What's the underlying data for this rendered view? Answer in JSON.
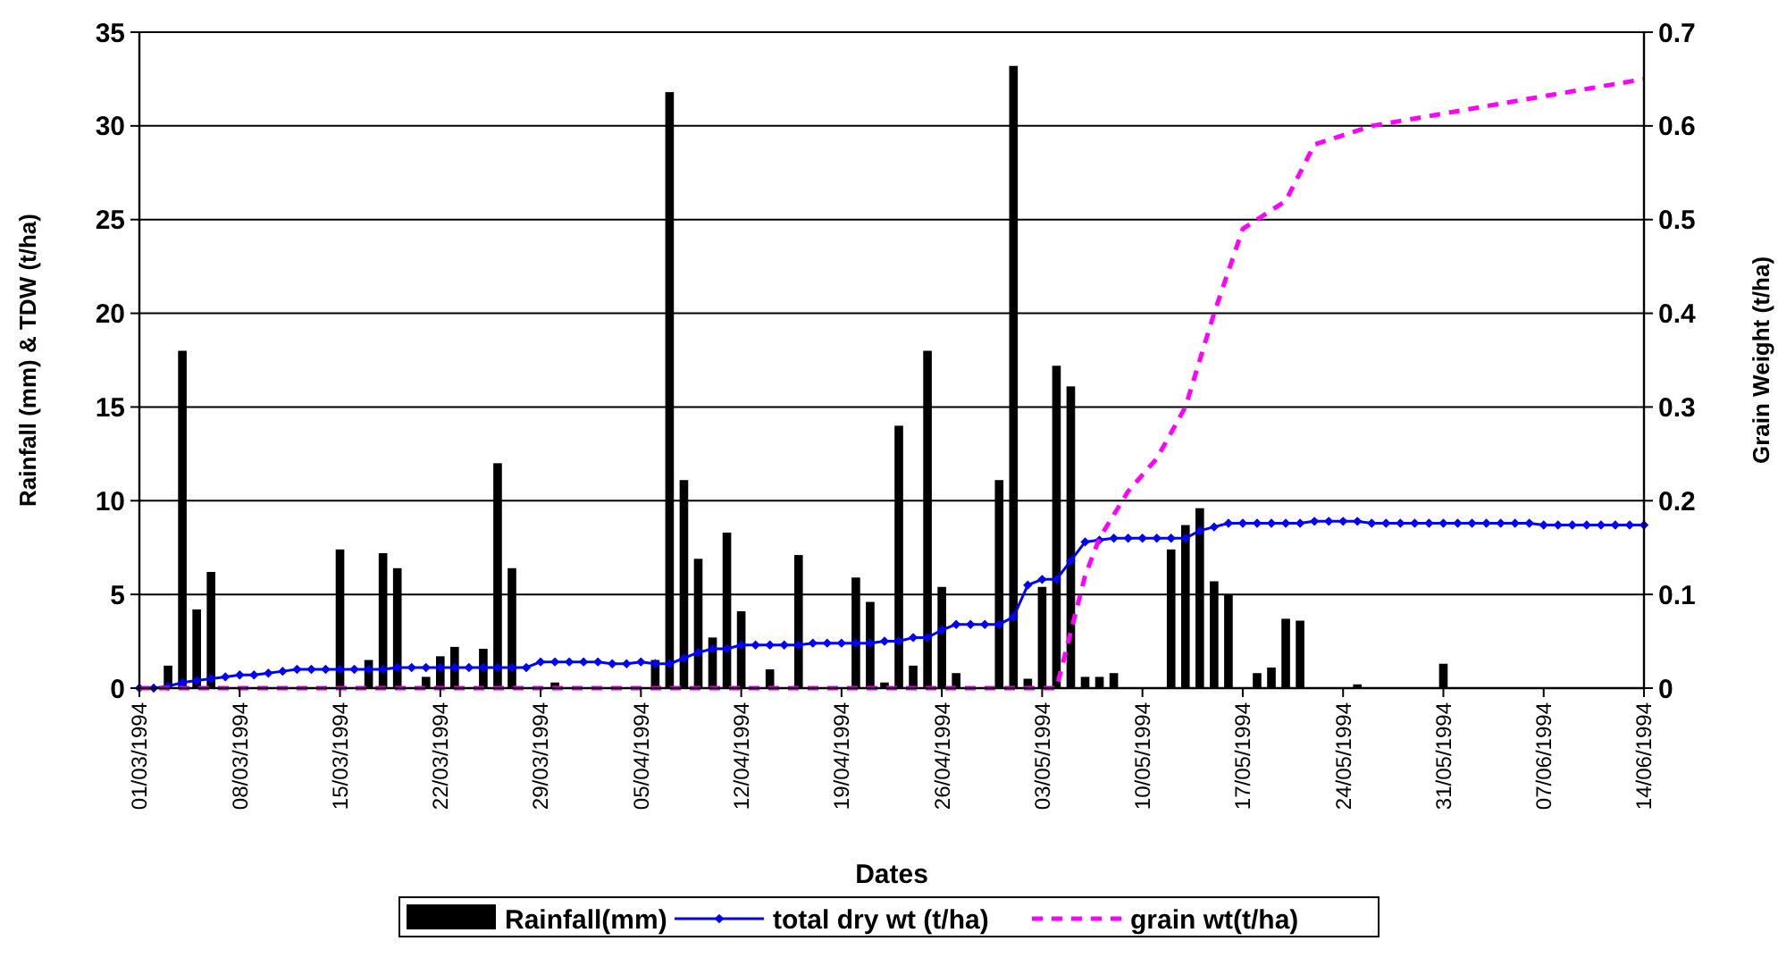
{
  "chart_data": {
    "type": "bar",
    "xlabel": "Dates",
    "ylabel": "Rainfall (mm) & TDW (t/ha)",
    "y2label": "Grain Weight (t/ha)",
    "xlim": [
      "1994-03-01",
      "1994-06-14"
    ],
    "xticks": [
      {
        "value": "1994-03-01",
        "label": "01/03/1994"
      },
      {
        "value": "1994-03-08",
        "label": "08/03/1994"
      },
      {
        "value": "1994-03-15",
        "label": "15/03/1994"
      },
      {
        "value": "1994-03-22",
        "label": "22/03/1994"
      },
      {
        "value": "1994-03-29",
        "label": "29/03/1994"
      },
      {
        "value": "1994-04-05",
        "label": "05/04/1994"
      },
      {
        "value": "1994-04-12",
        "label": "12/04/1994"
      },
      {
        "value": "1994-04-19",
        "label": "19/04/1994"
      },
      {
        "value": "1994-04-26",
        "label": "26/04/1994"
      },
      {
        "value": "1994-05-03",
        "label": "03/05/1994"
      },
      {
        "value": "1994-05-10",
        "label": "10/05/1994"
      },
      {
        "value": "1994-05-17",
        "label": "17/05/1994"
      },
      {
        "value": "1994-05-24",
        "label": "24/05/1994"
      },
      {
        "value": "1994-05-31",
        "label": "31/05/1994"
      },
      {
        "value": "1994-06-07",
        "label": "07/06/1994"
      },
      {
        "value": "1994-06-14",
        "label": "14/06/1994"
      }
    ],
    "ylim": [
      0,
      35
    ],
    "yticks": [
      0,
      5,
      10,
      15,
      20,
      25,
      30,
      35
    ],
    "y2lim": [
      0,
      0.7
    ],
    "y2ticks": [
      0,
      0.1,
      0.2,
      0.3,
      0.4,
      0.5,
      0.6,
      0.7
    ],
    "grid": "y",
    "legend": "bottom",
    "series": [
      {
        "name": "Rainfall(mm)",
        "color": "#000000",
        "x": [
          "1994-03-03",
          "1994-03-04",
          "1994-03-05",
          "1994-03-06",
          "1994-03-15",
          "1994-03-17",
          "1994-03-18",
          "1994-03-19",
          "1994-03-21",
          "1994-03-22",
          "1994-03-23",
          "1994-03-25",
          "1994-03-26",
          "1994-03-27",
          "1994-03-30",
          "1994-04-06",
          "1994-04-07",
          "1994-04-08",
          "1994-04-09",
          "1994-04-10",
          "1994-04-11",
          "1994-04-12",
          "1994-04-14",
          "1994-04-16",
          "1994-04-20",
          "1994-04-21",
          "1994-04-22",
          "1994-04-23",
          "1994-04-24",
          "1994-04-25",
          "1994-04-26",
          "1994-04-27",
          "1994-04-30",
          "1994-05-01",
          "1994-05-02",
          "1994-05-03",
          "1994-05-04",
          "1994-05-05",
          "1994-05-06",
          "1994-05-07",
          "1994-05-08",
          "1994-05-12",
          "1994-05-13",
          "1994-05-14",
          "1994-05-15",
          "1994-05-16",
          "1994-05-18",
          "1994-05-19",
          "1994-05-20",
          "1994-05-21",
          "1994-05-25",
          "1994-05-31"
        ],
        "values": [
          1.2,
          18,
          4.2,
          6.2,
          7.4,
          1.5,
          7.2,
          6.4,
          0.6,
          1.7,
          2.2,
          2.1,
          12,
          6.4,
          0.3,
          1.5,
          31.8,
          11.1,
          6.9,
          2.7,
          8.3,
          4.1,
          1.0,
          7.1,
          5.9,
          4.6,
          0.3,
          14,
          1.2,
          18,
          5.4,
          0.8,
          11.1,
          33.2,
          0.5,
          5.4,
          17.2,
          16.1,
          0.6,
          0.6,
          0.8,
          7.4,
          8.7,
          9.6,
          5.7,
          5.0,
          0.8,
          1.1,
          3.7,
          3.6,
          0.2,
          1.3
        ]
      },
      {
        "name": "total dry wt (t/ha)",
        "type": "line",
        "color": "#0000ff",
        "marker": "diamond",
        "line_style": "solid",
        "x": [
          "1994-03-01",
          "1994-03-02",
          "1994-03-03",
          "1994-03-04",
          "1994-03-05",
          "1994-03-06",
          "1994-03-07",
          "1994-03-08",
          "1994-03-09",
          "1994-03-10",
          "1994-03-11",
          "1994-03-12",
          "1994-03-13",
          "1994-03-14",
          "1994-03-15",
          "1994-03-16",
          "1994-03-17",
          "1994-03-18",
          "1994-03-19",
          "1994-03-20",
          "1994-03-21",
          "1994-03-22",
          "1994-03-23",
          "1994-03-24",
          "1994-03-25",
          "1994-03-26",
          "1994-03-27",
          "1994-03-28",
          "1994-03-29",
          "1994-03-30",
          "1994-03-31",
          "1994-04-01",
          "1994-04-02",
          "1994-04-03",
          "1994-04-04",
          "1994-04-05",
          "1994-04-06",
          "1994-04-07",
          "1994-04-08",
          "1994-04-09",
          "1994-04-10",
          "1994-04-11",
          "1994-04-12",
          "1994-04-13",
          "1994-04-14",
          "1994-04-15",
          "1994-04-16",
          "1994-04-17",
          "1994-04-18",
          "1994-04-19",
          "1994-04-20",
          "1994-04-21",
          "1994-04-22",
          "1994-04-23",
          "1994-04-24",
          "1994-04-25",
          "1994-04-26",
          "1994-04-27",
          "1994-04-28",
          "1994-04-29",
          "1994-04-30",
          "1994-05-01",
          "1994-05-02",
          "1994-05-03",
          "1994-05-04",
          "1994-05-05",
          "1994-05-06",
          "1994-05-07",
          "1994-05-08",
          "1994-05-09",
          "1994-05-10",
          "1994-05-11",
          "1994-05-12",
          "1994-05-13",
          "1994-05-14",
          "1994-05-15",
          "1994-05-16",
          "1994-05-17",
          "1994-05-18",
          "1994-05-19",
          "1994-05-20",
          "1994-05-21",
          "1994-05-22",
          "1994-05-23",
          "1994-05-24",
          "1994-05-25",
          "1994-05-26",
          "1994-05-27",
          "1994-05-28",
          "1994-05-29",
          "1994-05-30",
          "1994-05-31",
          "1994-06-01",
          "1994-06-02",
          "1994-06-03",
          "1994-06-04",
          "1994-06-05",
          "1994-06-06",
          "1994-06-07",
          "1994-06-08",
          "1994-06-09",
          "1994-06-10",
          "1994-06-11",
          "1994-06-12",
          "1994-06-13",
          "1994-06-14"
        ],
        "values": [
          0,
          0,
          0.1,
          0.3,
          0.4,
          0.5,
          0.6,
          0.7,
          0.7,
          0.8,
          0.9,
          1,
          1,
          1,
          1,
          1,
          1,
          1,
          1.1,
          1.1,
          1.1,
          1.1,
          1.1,
          1.1,
          1.1,
          1.1,
          1.1,
          1.1,
          1.4,
          1.4,
          1.4,
          1.4,
          1.4,
          1.3,
          1.3,
          1.4,
          1.3,
          1.3,
          1.6,
          1.9,
          2.1,
          2.1,
          2.3,
          2.3,
          2.3,
          2.3,
          2.3,
          2.4,
          2.4,
          2.4,
          2.4,
          2.4,
          2.5,
          2.5,
          2.7,
          2.7,
          3.1,
          3.4,
          3.4,
          3.4,
          3.4,
          3.8,
          5.5,
          5.8,
          5.8,
          6.8,
          7.8,
          7.9,
          8,
          8,
          8,
          8,
          8,
          8,
          8.4,
          8.6,
          8.8,
          8.8,
          8.8,
          8.8,
          8.8,
          8.8,
          8.9,
          8.9,
          8.9,
          8.9,
          8.8,
          8.8,
          8.8,
          8.8,
          8.8,
          8.8,
          8.8,
          8.8,
          8.8,
          8.8,
          8.8,
          8.8,
          8.7,
          8.7,
          8.7,
          8.7,
          8.7,
          8.7,
          8.7,
          8.7
        ]
      },
      {
        "name": "grain wt(t/ha)",
        "type": "line",
        "axis": "y2",
        "color": "#ff00ff",
        "line_style": "dashed",
        "x": [
          "1994-03-01",
          "1994-05-04",
          "1994-05-06",
          "1994-05-07",
          "1994-05-09",
          "1994-05-11",
          "1994-05-13",
          "1994-05-15",
          "1994-05-17",
          "1994-05-18",
          "1994-05-20",
          "1994-05-22",
          "1994-05-26",
          "1994-06-14"
        ],
        "values": [
          0,
          0,
          0.12,
          0.16,
          0.21,
          0.245,
          0.3,
          0.4,
          0.49,
          0.5,
          0.52,
          0.58,
          0.6,
          0.65
        ]
      }
    ]
  }
}
